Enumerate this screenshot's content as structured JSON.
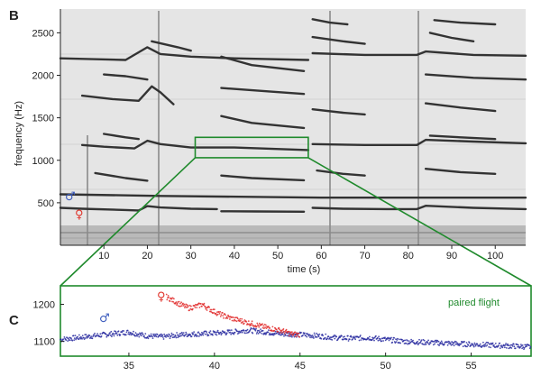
{
  "chart_data": [
    {
      "panel": "B",
      "type": "line",
      "xlabel": "time (s)",
      "ylabel": "frequency (Hz)",
      "xlim": [
        0,
        107
      ],
      "ylim": [
        0,
        2780
      ],
      "xticks": [
        10,
        20,
        30,
        40,
        50,
        60,
        70,
        80,
        90,
        100
      ],
      "yticks": [
        500,
        1000,
        1500,
        2000,
        2500
      ],
      "grid": false,
      "male_symbol": "♂",
      "female_symbol": "♀",
      "male_color": "#3b5bbd",
      "female_color": "#e0342b",
      "line_color": "#333333",
      "zoom_box": {
        "x": [
          31,
          57
        ],
        "y": [
          1030,
          1270
        ],
        "color": "#1f8a2c"
      },
      "series": [
        {
          "points": [
            [
              0,
              600
            ],
            [
              23,
              580
            ],
            [
              60,
              560
            ],
            [
              107,
              560
            ]
          ]
        },
        {
          "points": [
            [
              0,
              440
            ],
            [
              5,
              430
            ],
            [
              15,
              415
            ],
            [
              18,
              410
            ],
            [
              20,
              460
            ],
            [
              23,
              445
            ],
            [
              30,
              430
            ],
            [
              36,
              425
            ]
          ]
        },
        {
          "points": [
            [
              37,
              400
            ],
            [
              45,
              398
            ],
            [
              56,
              395
            ]
          ]
        },
        {
          "points": [
            [
              58,
              440
            ],
            [
              65,
              430
            ],
            [
              75,
              425
            ],
            [
              82,
              425
            ],
            [
              84,
              465
            ],
            [
              95,
              440
            ],
            [
              107,
              425
            ]
          ]
        },
        {
          "points": [
            [
              5,
              1180
            ],
            [
              10,
              1160
            ],
            [
              17,
              1140
            ],
            [
              20,
              1230
            ],
            [
              23,
              1190
            ],
            [
              30,
              1150
            ],
            [
              40,
              1150
            ],
            [
              57,
              1120
            ]
          ]
        },
        {
          "points": [
            [
              58,
              1190
            ],
            [
              70,
              1180
            ],
            [
              82,
              1180
            ],
            [
              84,
              1240
            ],
            [
              95,
              1220
            ],
            [
              107,
              1200
            ]
          ]
        },
        {
          "points": [
            [
              10,
              1310
            ],
            [
              15,
              1270
            ],
            [
              18,
              1250
            ]
          ]
        },
        {
          "points": [
            [
              85,
              1290
            ],
            [
              92,
              1270
            ],
            [
              100,
              1250
            ]
          ]
        },
        {
          "points": [
            [
              8,
              850
            ],
            [
              15,
              790
            ],
            [
              20,
              760
            ]
          ]
        },
        {
          "points": [
            [
              37,
              820
            ],
            [
              44,
              790
            ],
            [
              56,
              765
            ]
          ]
        },
        {
          "points": [
            [
              59,
              880
            ],
            [
              65,
              840
            ],
            [
              70,
              820
            ]
          ]
        },
        {
          "points": [
            [
              84,
              900
            ],
            [
              92,
              860
            ],
            [
              100,
              840
            ]
          ]
        },
        {
          "points": [
            [
              5,
              1760
            ],
            [
              12,
              1720
            ],
            [
              18,
              1700
            ],
            [
              21,
              1870
            ],
            [
              23,
              1800
            ],
            [
              26,
              1660
            ]
          ]
        },
        {
          "points": [
            [
              37,
              1520
            ],
            [
              44,
              1440
            ],
            [
              56,
              1380
            ]
          ]
        },
        {
          "points": [
            [
              58,
              1600
            ],
            [
              65,
              1560
            ],
            [
              70,
              1540
            ]
          ]
        },
        {
          "points": [
            [
              84,
              1670
            ],
            [
              92,
              1620
            ],
            [
              100,
              1580
            ]
          ]
        },
        {
          "points": [
            [
              10,
              2010
            ],
            [
              15,
              1990
            ],
            [
              20,
              1950
            ]
          ]
        },
        {
          "points": [
            [
              37,
              1850
            ],
            [
              48,
              1810
            ],
            [
              56,
              1780
            ]
          ]
        },
        {
          "points": [
            [
              84,
              2010
            ],
            [
              95,
              1970
            ],
            [
              107,
              1950
            ]
          ]
        },
        {
          "points": [
            [
              0,
              2200
            ],
            [
              15,
              2180
            ],
            [
              20,
              2330
            ],
            [
              23,
              2250
            ],
            [
              30,
              2220
            ],
            [
              40,
              2200
            ],
            [
              57,
              2180
            ]
          ]
        },
        {
          "points": [
            [
              58,
              2260
            ],
            [
              70,
              2240
            ],
            [
              82,
              2240
            ],
            [
              84,
              2280
            ],
            [
              95,
              2240
            ],
            [
              107,
              2230
            ]
          ]
        },
        {
          "points": [
            [
              21,
              2400
            ],
            [
              27,
              2330
            ],
            [
              30,
              2290
            ]
          ]
        },
        {
          "points": [
            [
              37,
              2220
            ],
            [
              44,
              2120
            ],
            [
              56,
              2050
            ]
          ]
        },
        {
          "points": [
            [
              58,
              2450
            ],
            [
              65,
              2400
            ],
            [
              70,
              2370
            ]
          ]
        },
        {
          "points": [
            [
              85,
              2500
            ],
            [
              90,
              2440
            ],
            [
              95,
              2400
            ]
          ]
        },
        {
          "points": [
            [
              58,
              2660
            ],
            [
              62,
              2620
            ],
            [
              66,
              2600
            ]
          ]
        },
        {
          "points": [
            [
              86,
              2650
            ],
            [
              92,
              2620
            ],
            [
              100,
              2600
            ]
          ]
        }
      ]
    },
    {
      "panel": "C",
      "type": "scatter",
      "title": "",
      "annotation": "paired flight",
      "xlabel": "",
      "ylabel": "",
      "xlim": [
        31,
        58.5
      ],
      "ylim": [
        1060,
        1250
      ],
      "xticks": [
        35,
        40,
        45,
        50,
        55
      ],
      "yticks": [
        1100,
        1200
      ],
      "grid": false,
      "male_symbol": "♂",
      "female_symbol": "♀",
      "series": [
        {
          "color": "#2a2da0",
          "points": [
            [
              31,
              1105
            ],
            [
              32,
              1110
            ],
            [
              33,
              1115
            ],
            [
              34,
              1120
            ],
            [
              35,
              1125
            ],
            [
              36,
              1115
            ],
            [
              37,
              1112
            ],
            [
              38,
              1118
            ],
            [
              39,
              1120
            ],
            [
              40,
              1122
            ],
            [
              41,
              1125
            ],
            [
              42,
              1130
            ],
            [
              43,
              1125
            ],
            [
              44,
              1120
            ],
            [
              45,
              1118
            ],
            [
              46,
              1115
            ],
            [
              47,
              1110
            ],
            [
              48,
              1108
            ],
            [
              49,
              1110
            ],
            [
              50,
              1105
            ],
            [
              51,
              1100
            ],
            [
              52,
              1098
            ],
            [
              53,
              1096
            ],
            [
              54,
              1094
            ],
            [
              55,
              1092
            ],
            [
              56,
              1090
            ],
            [
              57,
              1088
            ],
            [
              58.5,
              1085
            ]
          ]
        },
        {
          "color": "#e02a2a",
          "points": [
            [
              37.2,
              1220
            ],
            [
              37.6,
              1210
            ],
            [
              38,
              1200
            ],
            [
              38.5,
              1190
            ],
            [
              39,
              1195
            ],
            [
              39.3,
              1200
            ],
            [
              39.6,
              1190
            ],
            [
              40,
              1180
            ],
            [
              40.5,
              1170
            ],
            [
              41,
              1162
            ],
            [
              42,
              1150
            ],
            [
              43,
              1138
            ],
            [
              44,
              1128
            ],
            [
              44.5,
              1120
            ],
            [
              45,
              1118
            ]
          ]
        }
      ]
    }
  ]
}
